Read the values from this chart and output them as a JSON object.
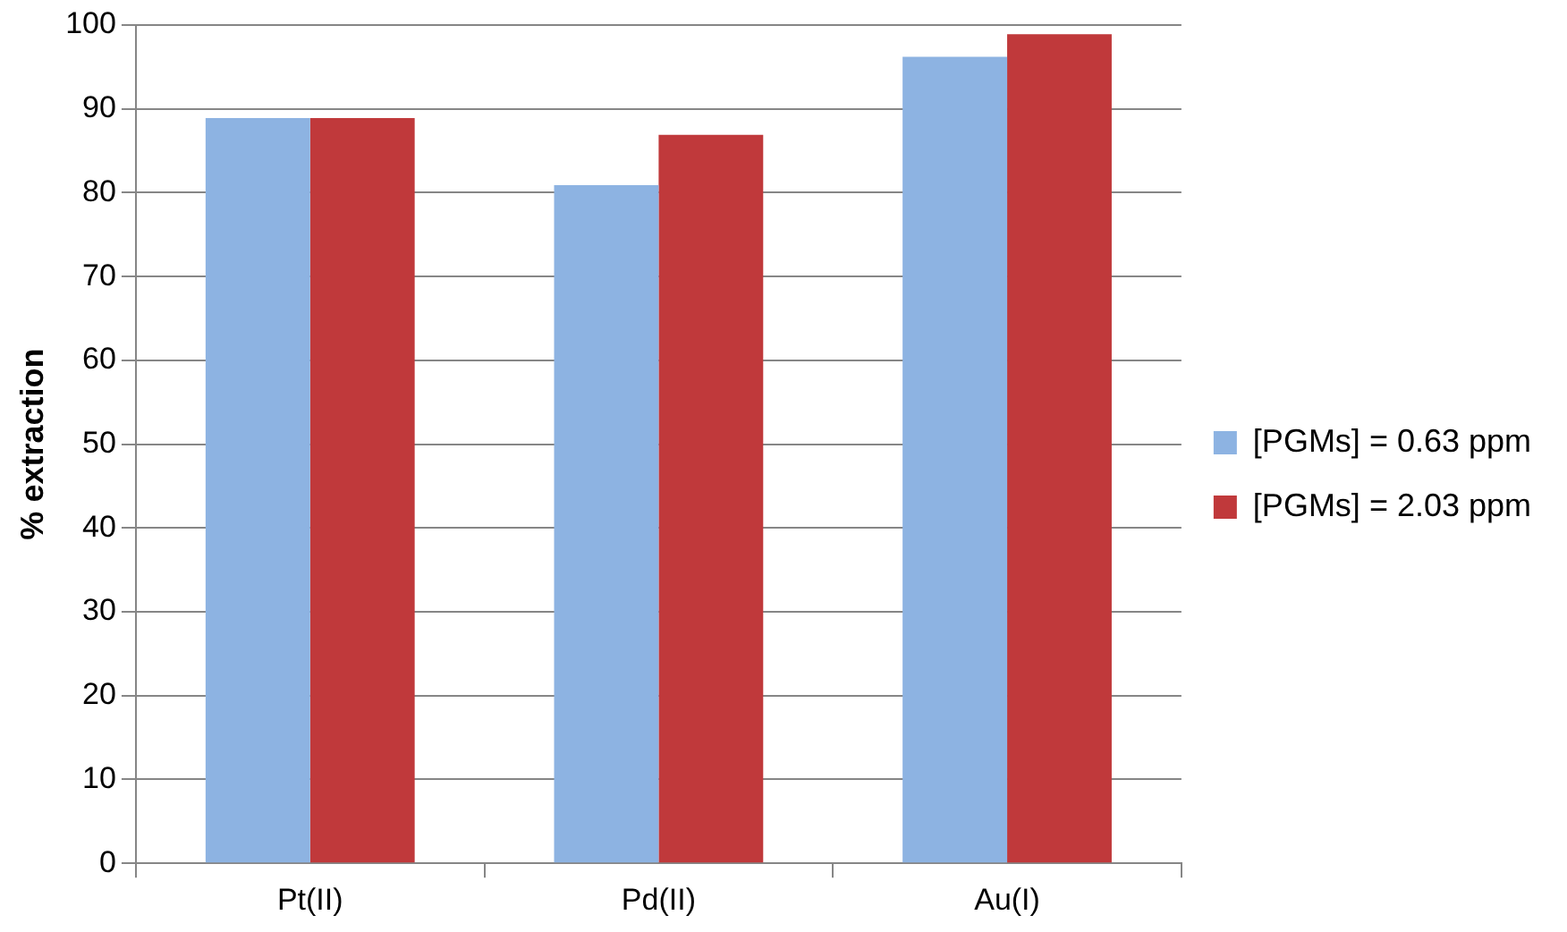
{
  "chart_data": {
    "type": "bar",
    "ylabel": "% extraction",
    "categories": [
      "Pt(II)",
      "Pd(II)",
      "Au(I)"
    ],
    "series": [
      {
        "name": "[PGMs] = 0.63 ppm",
        "color": "#8db3e2",
        "values": [
          88.9,
          80.9,
          96.2
        ]
      },
      {
        "name": "[PGMs] = 2.03 ppm",
        "color": "#c0393b",
        "values": [
          88.9,
          86.9,
          98.9
        ]
      }
    ],
    "ylim": [
      0,
      100
    ],
    "yticks": [
      0,
      10,
      20,
      30,
      40,
      50,
      60,
      70,
      80,
      90,
      100
    ],
    "grid": "y",
    "legend": "right"
  }
}
